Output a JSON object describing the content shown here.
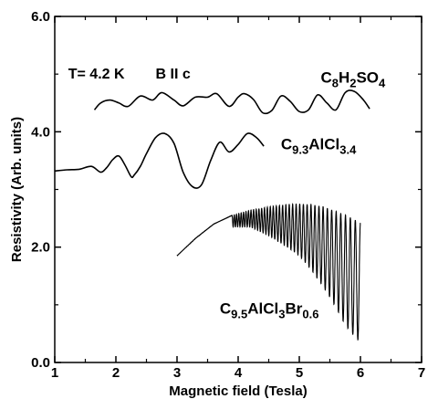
{
  "chart_data": {
    "type": "line",
    "title": "",
    "xlabel": "Magnetic field (Tesla)",
    "ylabel": "Resistivity (Arb. units)",
    "xlim": [
      1,
      7
    ],
    "ylim": [
      0.0,
      6.0
    ],
    "xticks": [
      "1",
      "2",
      "3",
      "4",
      "5",
      "6",
      "7"
    ],
    "yticks": [
      "0.0",
      "2.0",
      "4.0",
      "6.0"
    ],
    "grid": false,
    "legend": "none",
    "annotations": {
      "temperature": "T= 4.2 K",
      "field_dir": "B II c"
    },
    "series": [
      {
        "label_parts": [
          [
            "C",
            false
          ],
          [
            "8",
            true
          ],
          [
            "H",
            false
          ],
          [
            "2",
            true
          ],
          [
            "SO",
            false
          ],
          [
            "4",
            true
          ]
        ],
        "x": [
          1.65,
          1.75,
          1.9,
          2.05,
          2.2,
          2.4,
          2.6,
          2.75,
          2.95,
          3.1,
          3.3,
          3.5,
          3.65,
          3.85,
          4.0,
          4.1,
          4.25,
          4.4,
          4.55,
          4.7,
          4.85,
          5.0,
          5.15,
          5.3,
          5.45,
          5.6,
          5.75,
          5.9,
          6.05,
          6.15
        ],
        "y": [
          4.38,
          4.5,
          4.55,
          4.5,
          4.44,
          4.62,
          4.55,
          4.68,
          4.55,
          4.45,
          4.6,
          4.6,
          4.66,
          4.44,
          4.6,
          4.66,
          4.56,
          4.33,
          4.37,
          4.62,
          4.53,
          4.35,
          4.38,
          4.64,
          4.5,
          4.38,
          4.68,
          4.7,
          4.55,
          4.4
        ]
      },
      {
        "label_parts": [
          [
            "C",
            false
          ],
          [
            "9.3",
            true
          ],
          [
            "AlCl",
            false
          ],
          [
            "3.4",
            true
          ]
        ],
        "x": [
          1.0,
          1.2,
          1.4,
          1.6,
          1.75,
          1.85,
          1.95,
          2.05,
          2.15,
          2.25,
          2.3,
          2.4,
          2.5,
          2.65,
          2.8,
          2.95,
          3.1,
          3.25,
          3.4,
          3.55,
          3.7,
          3.85,
          4.0,
          4.15,
          4.3,
          4.42
        ],
        "y": [
          3.32,
          3.34,
          3.35,
          3.4,
          3.3,
          3.38,
          3.52,
          3.58,
          3.42,
          3.22,
          3.25,
          3.4,
          3.62,
          3.9,
          3.97,
          3.8,
          3.3,
          3.05,
          3.08,
          3.5,
          3.82,
          3.65,
          3.78,
          3.97,
          3.9,
          3.75
        ]
      },
      {
        "label_parts": [
          [
            "C",
            false
          ],
          [
            "9.5",
            true
          ],
          [
            "AlCl",
            false
          ],
          [
            "3",
            true
          ],
          [
            "Br",
            false
          ],
          [
            "0.6",
            true
          ]
        ],
        "type": "oscillating",
        "envelope_x": [
          3.0,
          3.3,
          3.6,
          3.9,
          4.2,
          4.5,
          4.8,
          5.0,
          5.2,
          5.4,
          5.6,
          5.75,
          5.9,
          6.0
        ],
        "envelope_upper": [
          1.85,
          2.15,
          2.4,
          2.55,
          2.64,
          2.7,
          2.74,
          2.75,
          2.74,
          2.7,
          2.62,
          2.56,
          2.48,
          2.42
        ],
        "envelope_lower": [
          1.85,
          2.1,
          2.28,
          2.35,
          2.35,
          2.2,
          2.0,
          1.85,
          1.6,
          1.3,
          0.95,
          0.65,
          0.45,
          0.35
        ],
        "oscillation_start": 3.9,
        "oscillation_cycles": 38
      }
    ]
  }
}
